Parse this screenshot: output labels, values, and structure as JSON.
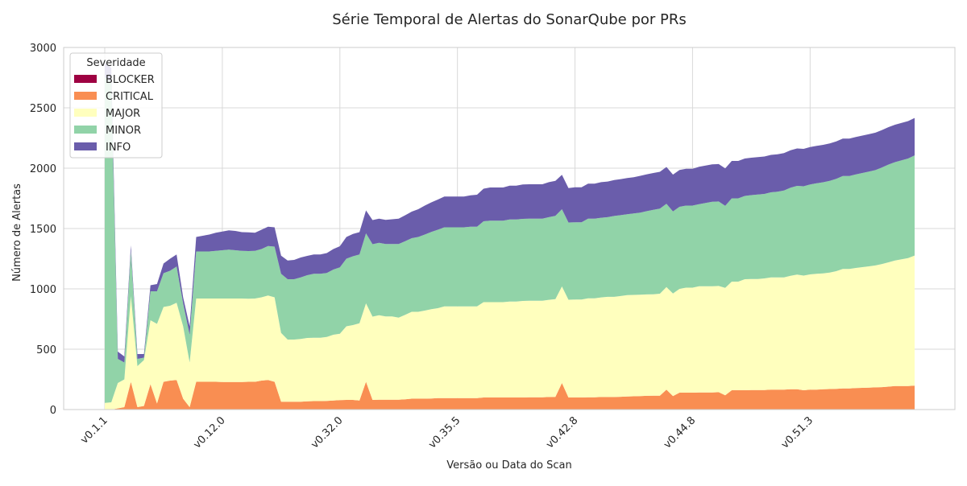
{
  "chart_data": {
    "type": "area",
    "stacked": true,
    "title": "Série Temporal de Alertas do SonarQube por PRs",
    "xlabel": "Versão ou Data do Scan",
    "ylabel": "Número de Alertas",
    "ylim": [
      0,
      3000
    ],
    "yticks": [
      0,
      500,
      1000,
      1500,
      2000,
      2500,
      3000
    ],
    "grid": true,
    "legend": {
      "title": "Severidade",
      "placement": "top-left"
    },
    "x_tick_labels": [
      {
        "index": 0,
        "label": "v0.1.1"
      },
      {
        "index": 18,
        "label": "v0.12.0"
      },
      {
        "index": 36,
        "label": "v0.32.0"
      },
      {
        "index": 54,
        "label": "v0.35.5"
      },
      {
        "index": 72,
        "label": "v0.42.8"
      },
      {
        "index": 90,
        "label": "v0.44.8"
      },
      {
        "index": 108,
        "label": "v0.51.3"
      }
    ],
    "n_points": 125,
    "series": [
      {
        "name": "BLOCKER",
        "color": "#9e0142",
        "values": [
          0,
          0,
          0,
          0,
          0,
          0,
          0,
          0,
          0,
          0,
          0,
          0,
          0,
          0,
          0,
          0,
          0,
          0,
          0,
          0,
          0,
          0,
          0,
          0,
          0,
          0,
          0,
          0,
          0,
          0,
          0,
          0,
          0,
          0,
          0,
          0,
          0,
          0,
          0,
          0,
          0,
          0,
          0,
          0,
          0,
          0,
          0,
          0,
          0,
          0,
          0,
          0,
          0,
          0,
          0,
          0,
          0,
          0,
          0,
          0,
          0,
          0,
          0,
          0,
          0,
          0,
          0,
          0,
          0,
          0,
          0,
          0,
          0,
          0,
          0,
          0,
          0,
          0,
          0,
          0,
          0,
          0,
          0,
          0,
          0,
          0,
          0,
          0,
          0,
          0,
          0,
          0,
          0,
          0,
          0,
          0,
          0,
          0,
          0,
          0,
          0,
          0,
          0,
          0,
          0,
          0,
          0,
          0,
          0,
          0,
          0,
          0,
          0,
          0,
          0,
          0,
          0,
          0,
          0,
          0,
          0,
          0,
          0,
          0,
          0
        ]
      },
      {
        "name": "CRITICAL",
        "color": "#f98e52",
        "values": [
          0,
          0,
          10,
          20,
          230,
          20,
          30,
          210,
          50,
          230,
          240,
          245,
          90,
          20,
          230,
          230,
          230,
          230,
          228,
          228,
          228,
          228,
          230,
          230,
          240,
          245,
          230,
          65,
          65,
          65,
          65,
          68,
          70,
          70,
          72,
          75,
          78,
          80,
          80,
          75,
          230,
          80,
          82,
          82,
          82,
          82,
          85,
          90,
          90,
          90,
          92,
          95,
          95,
          95,
          95,
          95,
          95,
          95,
          100,
          100,
          100,
          100,
          100,
          100,
          100,
          102,
          102,
          102,
          104,
          105,
          220,
          100,
          100,
          100,
          102,
          102,
          104,
          104,
          104,
          106,
          108,
          110,
          112,
          114,
          115,
          115,
          165,
          112,
          140,
          140,
          140,
          142,
          142,
          142,
          144,
          118,
          160,
          160,
          160,
          162,
          162,
          162,
          165,
          165,
          165,
          168,
          168,
          160,
          165,
          165,
          168,
          170,
          172,
          175,
          175,
          178,
          180,
          182,
          184,
          186,
          190,
          195,
          195,
          195,
          198
        ]
      },
      {
        "name": "MAJOR",
        "color": "#ffffbe",
        "values": [
          55,
          60,
          210,
          230,
          710,
          340,
          380,
          530,
          660,
          620,
          620,
          640,
          600,
          370,
          690,
          690,
          690,
          690,
          692,
          692,
          692,
          692,
          688,
          690,
          690,
          700,
          700,
          570,
          515,
          515,
          520,
          525,
          525,
          525,
          530,
          545,
          550,
          610,
          620,
          640,
          650,
          690,
          700,
          690,
          690,
          680,
          700,
          720,
          720,
          730,
          740,
          745,
          760,
          760,
          760,
          760,
          760,
          760,
          790,
          790,
          790,
          790,
          795,
          795,
          800,
          800,
          800,
          800,
          805,
          810,
          800,
          810,
          812,
          812,
          820,
          820,
          825,
          830,
          830,
          835,
          840,
          840,
          840,
          840,
          840,
          845,
          850,
          850,
          860,
          870,
          870,
          880,
          880,
          880,
          880,
          890,
          900,
          900,
          920,
          920,
          920,
          925,
          930,
          930,
          930,
          940,
          950,
          950,
          955,
          960,
          960,
          965,
          975,
          990,
          990,
          995,
          1000,
          1005,
          1010,
          1020,
          1030,
          1040,
          1050,
          1060,
          1078
        ]
      },
      {
        "name": "MINOR",
        "color": "#91d3a8",
        "values": [
          2700,
          2650,
          200,
          140,
          380,
          60,
          20,
          240,
          270,
          280,
          290,
          300,
          190,
          230,
          390,
          390,
          390,
          395,
          400,
          405,
          400,
          395,
          395,
          395,
          400,
          410,
          420,
          490,
          500,
          500,
          510,
          520,
          530,
          530,
          530,
          540,
          550,
          560,
          570,
          570,
          580,
          600,
          600,
          600,
          600,
          610,
          610,
          610,
          620,
          630,
          640,
          650,
          655,
          655,
          655,
          655,
          660,
          660,
          670,
          675,
          675,
          675,
          680,
          680,
          680,
          680,
          680,
          680,
          685,
          690,
          640,
          640,
          640,
          640,
          660,
          660,
          660,
          660,
          670,
          670,
          670,
          675,
          680,
          690,
          700,
          705,
          690,
          680,
          680,
          680,
          680,
          680,
          690,
          700,
          700,
          680,
          690,
          690,
          690,
          695,
          700,
          700,
          705,
          710,
          720,
          730,
          735,
          740,
          745,
          750,
          755,
          760,
          765,
          770,
          770,
          775,
          780,
          785,
          790,
          800,
          810,
          815,
          820,
          825,
          830
        ]
      },
      {
        "name": "INFO",
        "color": "#6a5dab",
        "values": [
          120,
          120,
          60,
          50,
          40,
          40,
          30,
          50,
          60,
          80,
          100,
          100,
          50,
          70,
          120,
          130,
          140,
          150,
          155,
          160,
          160,
          155,
          155,
          150,
          160,
          160,
          160,
          150,
          155,
          160,
          165,
          160,
          160,
          160,
          165,
          170,
          175,
          180,
          185,
          185,
          190,
          200,
          200,
          200,
          205,
          210,
          215,
          220,
          230,
          240,
          245,
          250,
          255,
          255,
          255,
          255,
          260,
          265,
          270,
          275,
          275,
          275,
          280,
          280,
          285,
          285,
          285,
          285,
          290,
          290,
          285,
          285,
          290,
          290,
          290,
          290,
          295,
          295,
          298,
          298,
          300,
          300,
          305,
          305,
          305,
          305,
          305,
          305,
          305,
          305,
          305,
          310,
          310,
          310,
          310,
          310,
          310,
          310,
          310,
          310,
          310,
          310,
          310,
          310,
          310,
          310,
          310,
          310,
          310,
          310,
          310,
          310,
          310,
          310,
          310,
          310,
          310,
          310,
          310,
          310,
          310,
          310,
          310,
          310,
          310
        ]
      }
    ]
  }
}
